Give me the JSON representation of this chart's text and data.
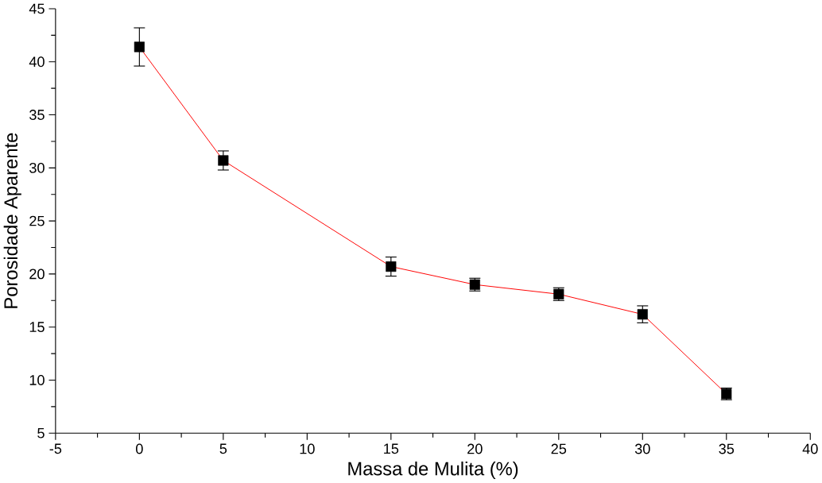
{
  "chart_data": {
    "type": "line",
    "xlabel": "Massa de Mulita (%)",
    "ylabel": "Porosidade Aparente",
    "x": [
      0,
      5,
      15,
      20,
      25,
      30,
      35
    ],
    "series": [
      {
        "color": "#ff0000",
        "values": [
          41.4,
          30.7,
          20.7,
          19.0,
          18.1,
          16.2,
          8.7
        ],
        "errors": [
          1.8,
          0.9,
          0.9,
          0.6,
          0.6,
          0.8,
          0.55
        ]
      }
    ],
    "xlim": [
      -5,
      40
    ],
    "ylim": [
      5,
      45
    ],
    "xticks": [
      -5,
      0,
      5,
      10,
      15,
      20,
      25,
      30,
      35,
      40
    ],
    "yticks": [
      5,
      10,
      15,
      20,
      25,
      30,
      35,
      40,
      45
    ],
    "marker": "square",
    "line_style": "solid",
    "grid": false,
    "legend": false
  }
}
